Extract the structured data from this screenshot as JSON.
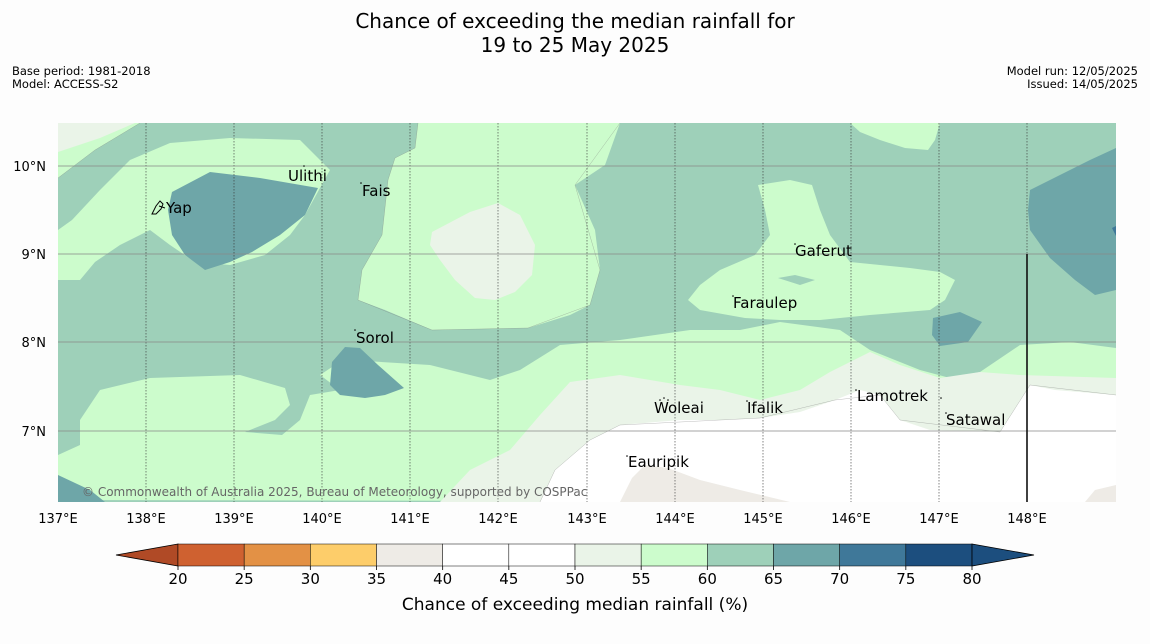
{
  "title": {
    "line1": "Chance of exceeding the median rainfall for",
    "line2": "19 to 25 May 2025"
  },
  "meta": {
    "base_period": "Base period: 1981-2018",
    "model": "Model: ACCESS-S2",
    "model_run": "Model run: 12/05/2025",
    "issued": "Issued: 14/05/2025"
  },
  "map": {
    "lon_labels": [
      "137°E",
      "138°E",
      "139°E",
      "140°E",
      "141°E",
      "142°E",
      "143°E",
      "144°E",
      "145°E",
      "146°E",
      "147°E",
      "148°E"
    ],
    "lat_labels": [
      "10°N",
      "9°N",
      "8°N",
      "7°N"
    ],
    "places": [
      {
        "name": "Yap"
      },
      {
        "name": "Ulithi"
      },
      {
        "name": "Fais"
      },
      {
        "name": "Gaferut"
      },
      {
        "name": "Faraulep"
      },
      {
        "name": "Sorol"
      },
      {
        "name": "Woleai"
      },
      {
        "name": "Ifalik"
      },
      {
        "name": "Lamotrek"
      },
      {
        "name": "Satawal"
      },
      {
        "name": "Eauripik"
      }
    ],
    "copyright": "© Commonwealth of Australia 2025, Bureau of Meteorology, supported by COSPPac"
  },
  "colorbar": {
    "title": "Chance of exceeding median rainfall (%)",
    "ticks": [
      "20",
      "25",
      "30",
      "35",
      "40",
      "45",
      "50",
      "55",
      "60",
      "65",
      "70",
      "75",
      "80"
    ],
    "colors": [
      "#b04a26",
      "#cf6130",
      "#e39145",
      "#fdcd6a",
      "#eeebe6",
      "#ffffff",
      "#ffffff",
      "#eaf4e8",
      "#ccfccc",
      "#9ed0b9",
      "#6ea6a8",
      "#3f7899",
      "#1c4e7e"
    ]
  }
}
